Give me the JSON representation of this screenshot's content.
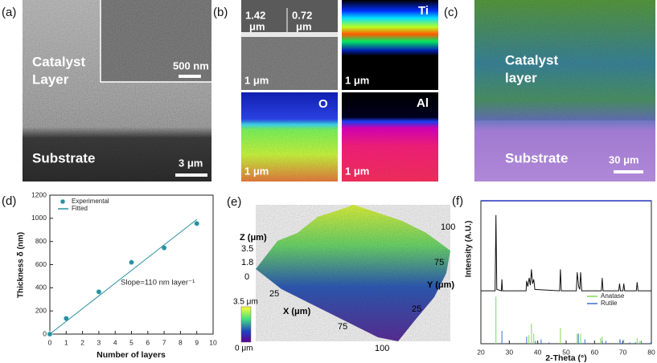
{
  "panels": {
    "a": {
      "label": "(a)",
      "layer_text": [
        "Catalyst",
        "Layer"
      ],
      "inset_scale": "500 nm",
      "substrate": "Substrate",
      "scale": "3 μm"
    },
    "b": {
      "label": "(b)",
      "thickness_1": [
        "1.42",
        "μm"
      ],
      "thickness_2": [
        "0.72",
        "μm"
      ],
      "scales": [
        "1 μm",
        "1 μm",
        "1 μm",
        "1 μm"
      ],
      "elements": [
        "Ti",
        "O",
        "Al"
      ]
    },
    "c": {
      "label": "(c)",
      "layer_text": [
        "Catalyst",
        "layer"
      ],
      "substrate": "Substrate",
      "scale": "30 μm"
    },
    "e": {
      "label": "(e)",
      "z_label": "Z (μm)",
      "z_ticks": [
        "3.5",
        "1.8",
        "0"
      ],
      "x_label": "X (μm)",
      "x_ticks": [
        "25",
        "75",
        "100"
      ],
      "y_label": "Y (μm)",
      "y_ticks": [
        "100",
        "75",
        "25"
      ],
      "colorbar": [
        "3.5 μm",
        "0 μm"
      ]
    }
  },
  "chart_data": [
    {
      "type": "scatter",
      "panel_label": "(d)",
      "xlabel": "Number of layers",
      "ylabel": "Thickness δ (nm)",
      "annotation": "Slope=110 nm layer⁻¹",
      "xlim": [
        0,
        10
      ],
      "xticks": [
        0,
        1,
        2,
        3,
        4,
        5,
        6,
        7,
        8,
        9,
        10
      ],
      "ylim": [
        0,
        1200
      ],
      "yticks": [
        0,
        200,
        400,
        600,
        800,
        1000,
        1200
      ],
      "legend": "upper left",
      "series": [
        {
          "name": "Experimental",
          "color": "#2a8f9e",
          "style": "markers",
          "x": [
            0,
            1,
            3,
            5,
            7,
            9
          ],
          "values": [
            0,
            135,
            365,
            620,
            745,
            955
          ],
          "errors": [
            5,
            10,
            15,
            10,
            15,
            20
          ]
        },
        {
          "name": "Fitted",
          "color": "#2a8f9e",
          "style": "line",
          "x": [
            0,
            9
          ],
          "values": [
            0,
            990
          ]
        }
      ]
    },
    {
      "type": "line",
      "panel_label": "(f)",
      "xlabel": "2-Theta (°)",
      "ylabel": "Intensity (A.U.)",
      "xlim": [
        20,
        80
      ],
      "xticks": [
        20,
        30,
        40,
        50,
        60,
        70,
        80
      ],
      "ylim": [
        0,
        100
      ],
      "legend": "right",
      "series": [
        {
          "color": "#111111",
          "style": "line",
          "x": [
            20,
            25.0,
            25.3,
            25.6,
            27.2,
            27.4,
            27.6,
            35.9,
            36.1,
            36.5,
            37.0,
            37.4,
            37.8,
            38.2,
            38.6,
            39.0,
            47.7,
            48.0,
            48.3,
            53.6,
            53.9,
            54.4,
            54.8,
            55.1,
            55.5,
            62.4,
            62.7,
            63.0,
            68.5,
            68.8,
            69.1,
            70.0,
            70.3,
            70.6,
            74.7,
            75.0,
            75.3,
            80
          ],
          "values": [
            37,
            37,
            90,
            38,
            37,
            45,
            37,
            37,
            44,
            40,
            46,
            41,
            52,
            42,
            45,
            38,
            37,
            52,
            37,
            37,
            50,
            40,
            38,
            50,
            37,
            37,
            46,
            37,
            37,
            42,
            37,
            37,
            42,
            37,
            37,
            43,
            37,
            37
          ]
        },
        {
          "name": "Anatase",
          "color": "#7ed957",
          "style": "stick",
          "x": [
            25.3,
            36.9,
            37.8,
            38.6,
            48.0,
            53.9,
            55.1,
            62.1,
            62.7,
            68.8,
            70.3,
            75.0,
            76.0
          ],
          "values": [
            33,
            6,
            14,
            7,
            11,
            7,
            7,
            4,
            5,
            3,
            3,
            4,
            2
          ]
        },
        {
          "name": "Rutile",
          "color": "#3b6fd4",
          "style": "stick",
          "x": [
            27.4,
            36.1,
            39.2,
            41.2,
            44.0,
            54.3,
            56.6,
            62.7,
            64.0,
            69.0,
            69.8,
            72.4,
            74.4,
            76.5,
            79.8
          ],
          "values": [
            9,
            5,
            2,
            3,
            1,
            7,
            3,
            2,
            2,
            3,
            1,
            1,
            1,
            2,
            1
          ]
        }
      ]
    }
  ]
}
